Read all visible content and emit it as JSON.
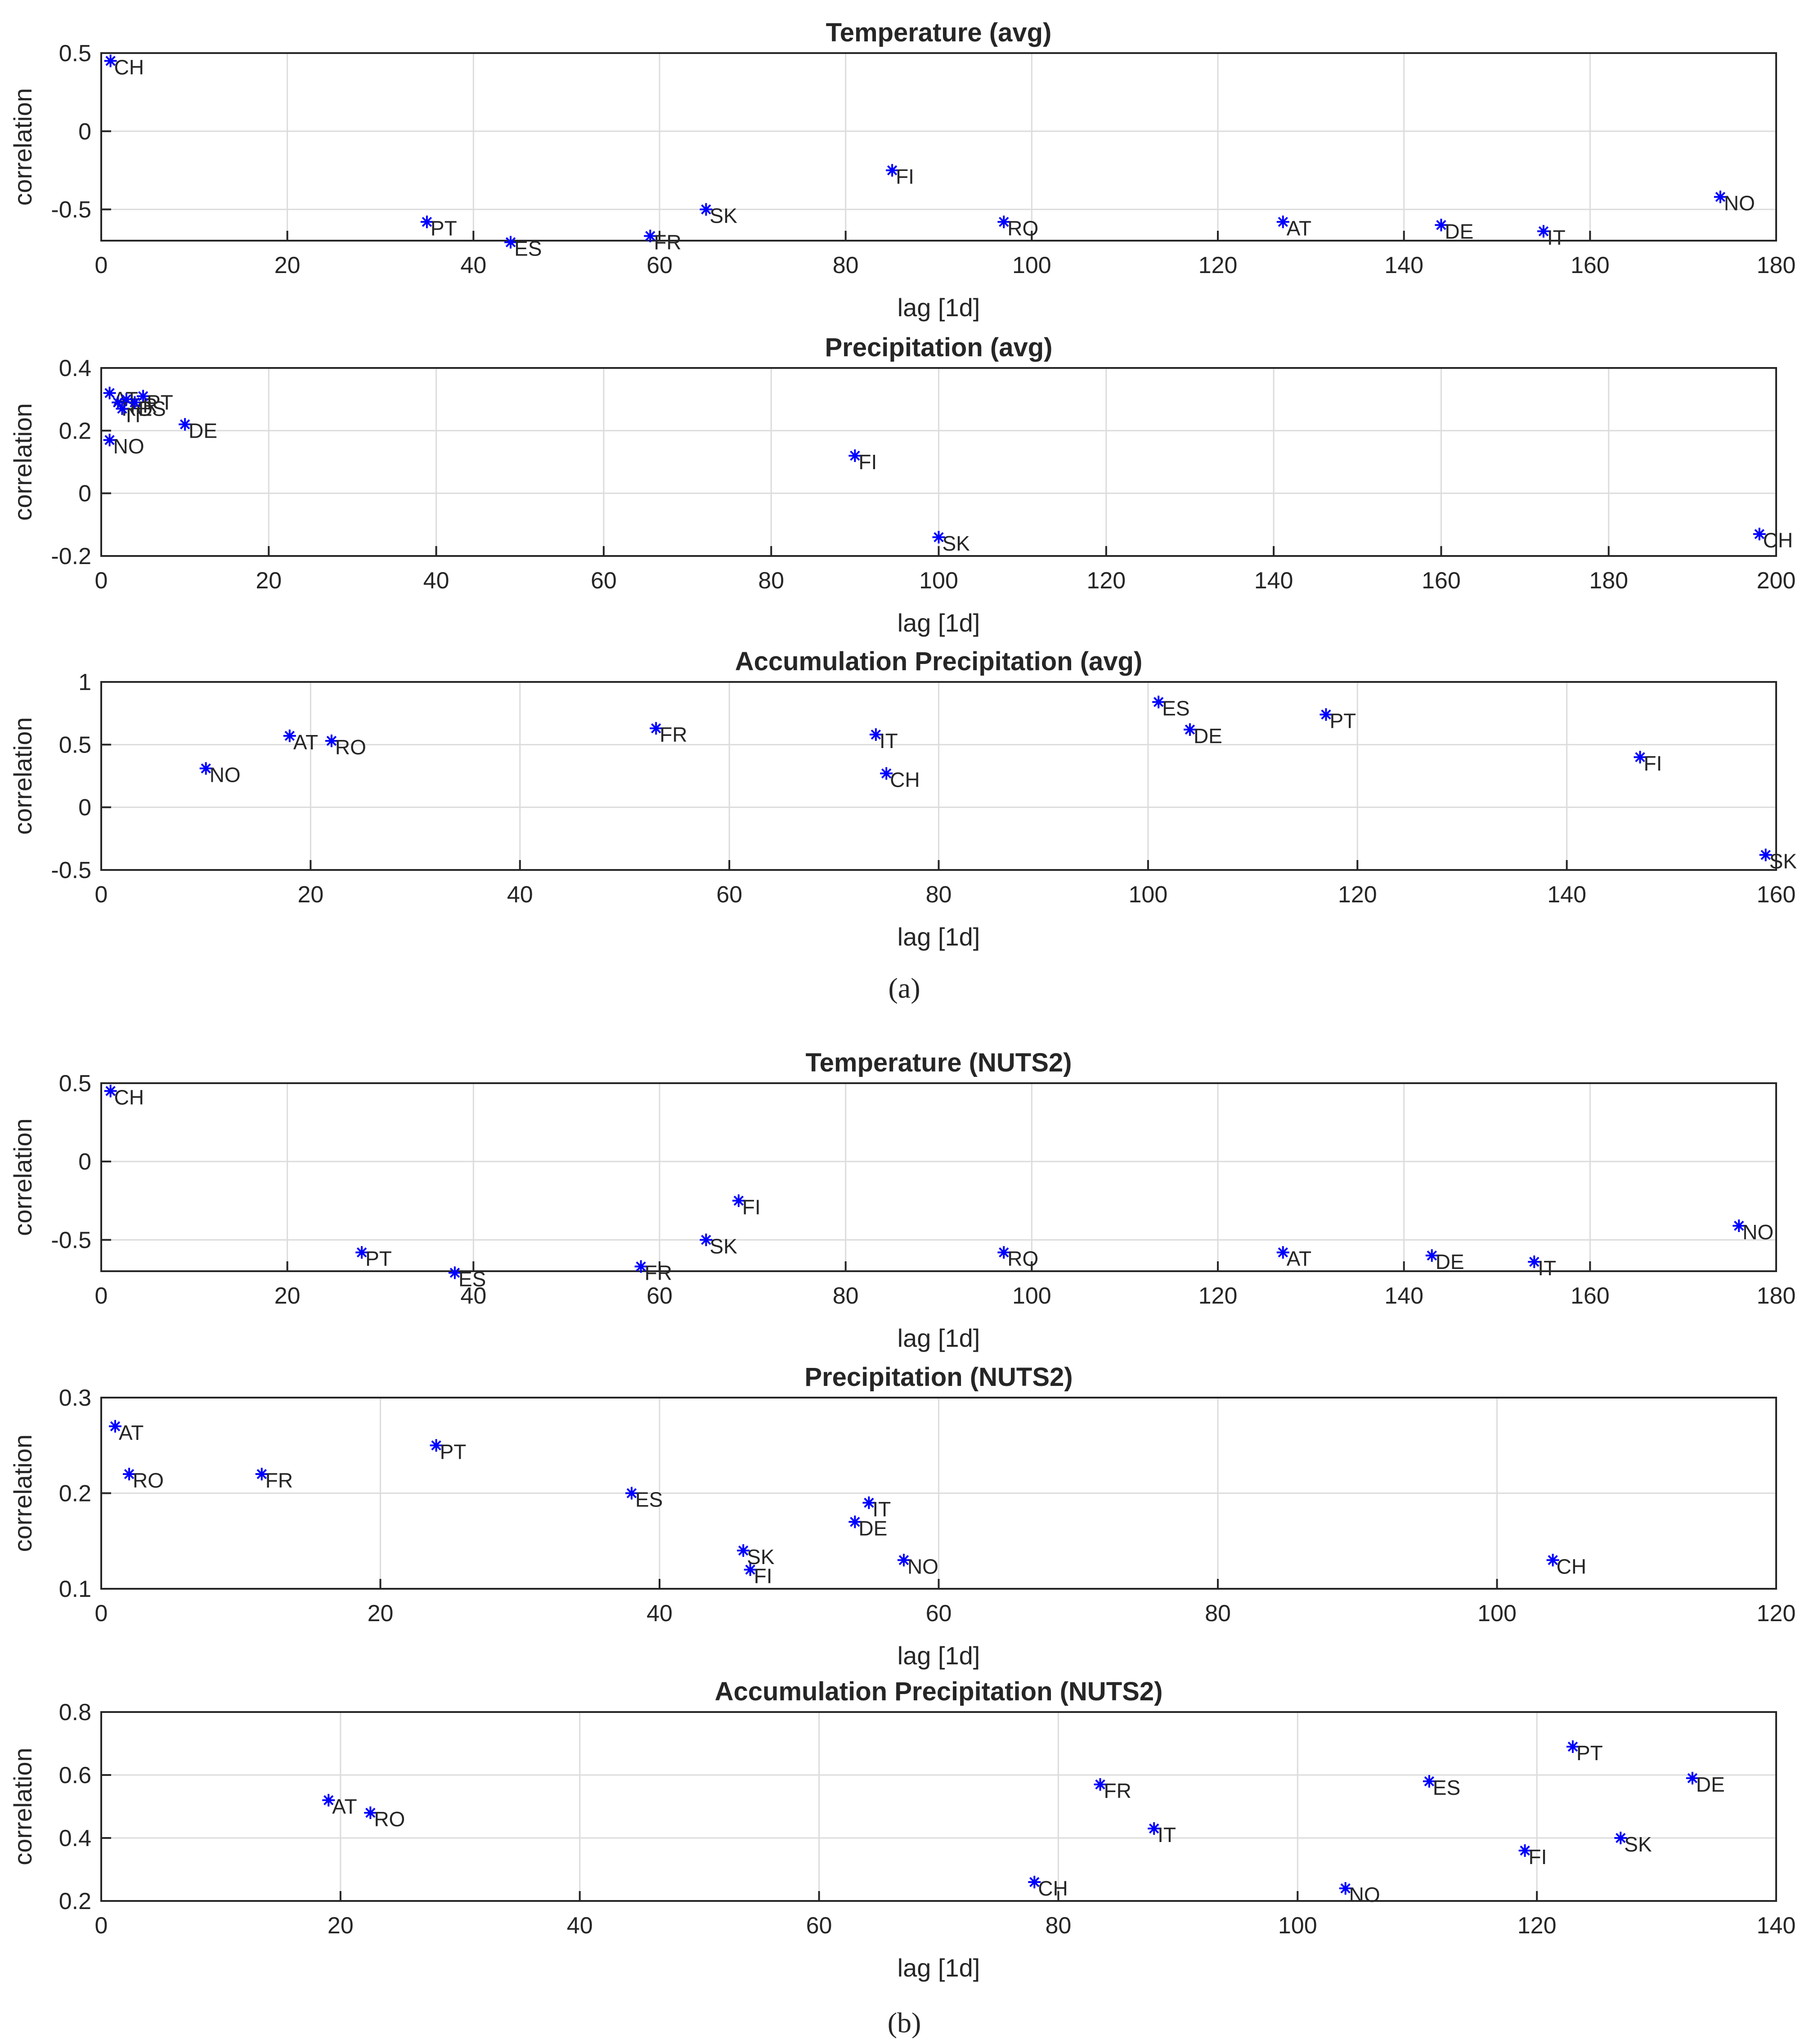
{
  "figure": {
    "caption_a": "(a)",
    "caption_b": "(b)"
  },
  "chart_data": [
    {
      "type": "scatter",
      "title": "Temperature (avg)",
      "xlabel": "lag [1d]",
      "ylabel": "correlation",
      "xlim": [
        0,
        180
      ],
      "ylim": [
        -0.7,
        0.5
      ],
      "xticks": [
        0,
        20,
        40,
        60,
        80,
        100,
        120,
        140,
        160,
        180
      ],
      "yticks": [
        -0.5,
        0,
        0.5
      ],
      "grid": true,
      "points": [
        {
          "label": "CH",
          "x": 1,
          "y": 0.45
        },
        {
          "label": "PT",
          "x": 35,
          "y": -0.58
        },
        {
          "label": "ES",
          "x": 44,
          "y": -0.71
        },
        {
          "label": "FR",
          "x": 59,
          "y": -0.67
        },
        {
          "label": "SK",
          "x": 65,
          "y": -0.5
        },
        {
          "label": "FI",
          "x": 85,
          "y": -0.25
        },
        {
          "label": "RO",
          "x": 97,
          "y": -0.58
        },
        {
          "label": "AT",
          "x": 127,
          "y": -0.58
        },
        {
          "label": "DE",
          "x": 144,
          "y": -0.6
        },
        {
          "label": "IT",
          "x": 155,
          "y": -0.64
        },
        {
          "label": "NO",
          "x": 174,
          "y": -0.42
        }
      ]
    },
    {
      "type": "scatter",
      "title": "Precipitation (avg)",
      "xlabel": "lag [1d]",
      "ylabel": "correlation",
      "xlim": [
        0,
        200
      ],
      "ylim": [
        -0.2,
        0.4
      ],
      "xticks": [
        0,
        20,
        40,
        60,
        80,
        100,
        120,
        140,
        160,
        180,
        200
      ],
      "yticks": [
        -0.2,
        0,
        0.2,
        0.4
      ],
      "grid": true,
      "points": [
        {
          "label": "AT",
          "x": 1,
          "y": 0.32
        },
        {
          "label": "RO",
          "x": 2,
          "y": 0.29
        },
        {
          "label": "FR",
          "x": 3,
          "y": 0.3
        },
        {
          "label": "IT",
          "x": 2.5,
          "y": 0.27
        },
        {
          "label": "PT",
          "x": 5,
          "y": 0.31
        },
        {
          "label": "ES",
          "x": 4,
          "y": 0.29
        },
        {
          "label": "DE",
          "x": 10,
          "y": 0.22
        },
        {
          "label": "NO",
          "x": 1,
          "y": 0.17
        },
        {
          "label": "FI",
          "x": 90,
          "y": 0.12
        },
        {
          "label": "SK",
          "x": 100,
          "y": -0.14
        },
        {
          "label": "CH",
          "x": 198,
          "y": -0.13
        }
      ]
    },
    {
      "type": "scatter",
      "title": "Accumulation Precipitation (avg)",
      "xlabel": "lag [1d]",
      "ylabel": "correlation",
      "xlim": [
        0,
        160
      ],
      "ylim": [
        -0.5,
        1
      ],
      "xticks": [
        0,
        20,
        40,
        60,
        80,
        100,
        120,
        140,
        160
      ],
      "yticks": [
        -0.5,
        0,
        0.5,
        1
      ],
      "grid": true,
      "points": [
        {
          "label": "NO",
          "x": 10,
          "y": 0.31
        },
        {
          "label": "AT",
          "x": 18,
          "y": 0.57
        },
        {
          "label": "RO",
          "x": 22,
          "y": 0.53
        },
        {
          "label": "FR",
          "x": 53,
          "y": 0.63
        },
        {
          "label": "IT",
          "x": 74,
          "y": 0.58
        },
        {
          "label": "CH",
          "x": 75,
          "y": 0.27
        },
        {
          "label": "ES",
          "x": 101,
          "y": 0.84
        },
        {
          "label": "DE",
          "x": 104,
          "y": 0.62
        },
        {
          "label": "PT",
          "x": 117,
          "y": 0.74
        },
        {
          "label": "FI",
          "x": 147,
          "y": 0.4
        },
        {
          "label": "SK",
          "x": 159,
          "y": -0.38
        }
      ]
    },
    {
      "type": "scatter",
      "title": "Temperature (NUTS2)",
      "xlabel": "lag [1d]",
      "ylabel": "correlation",
      "xlim": [
        0,
        180
      ],
      "ylim": [
        -0.7,
        0.5
      ],
      "xticks": [
        0,
        20,
        40,
        60,
        80,
        100,
        120,
        140,
        160,
        180
      ],
      "yticks": [
        -0.5,
        0,
        0.5
      ],
      "grid": true,
      "points": [
        {
          "label": "CH",
          "x": 1,
          "y": 0.45
        },
        {
          "label": "PT",
          "x": 28,
          "y": -0.58
        },
        {
          "label": "ES",
          "x": 38,
          "y": -0.71
        },
        {
          "label": "FR",
          "x": 58,
          "y": -0.67
        },
        {
          "label": "SK",
          "x": 65,
          "y": -0.5
        },
        {
          "label": "FI",
          "x": 68.5,
          "y": -0.25
        },
        {
          "label": "RO",
          "x": 97,
          "y": -0.58
        },
        {
          "label": "AT",
          "x": 127,
          "y": -0.58
        },
        {
          "label": "DE",
          "x": 143,
          "y": -0.6
        },
        {
          "label": "IT",
          "x": 154,
          "y": -0.64
        },
        {
          "label": "NO",
          "x": 176,
          "y": -0.41
        }
      ]
    },
    {
      "type": "scatter",
      "title": "Precipitation (NUTS2)",
      "xlabel": "lag [1d]",
      "ylabel": "correlation",
      "xlim": [
        0,
        120
      ],
      "ylim": [
        0.1,
        0.3
      ],
      "xticks": [
        0,
        20,
        40,
        60,
        80,
        100,
        120
      ],
      "yticks": [
        0.1,
        0.2,
        0.3
      ],
      "grid": true,
      "points": [
        {
          "label": "AT",
          "x": 1,
          "y": 0.27
        },
        {
          "label": "RO",
          "x": 2,
          "y": 0.22
        },
        {
          "label": "FR",
          "x": 11.5,
          "y": 0.22
        },
        {
          "label": "PT",
          "x": 24,
          "y": 0.25
        },
        {
          "label": "ES",
          "x": 38,
          "y": 0.2
        },
        {
          "label": "IT",
          "x": 55,
          "y": 0.19
        },
        {
          "label": "DE",
          "x": 54,
          "y": 0.17
        },
        {
          "label": "SK",
          "x": 46,
          "y": 0.14
        },
        {
          "label": "FI",
          "x": 46.5,
          "y": 0.12
        },
        {
          "label": "NO",
          "x": 57.5,
          "y": 0.13
        },
        {
          "label": "CH",
          "x": 104,
          "y": 0.13
        }
      ]
    },
    {
      "type": "scatter",
      "title": "Accumulation Precipitation (NUTS2)",
      "xlabel": "lag [1d]",
      "ylabel": "correlation",
      "xlim": [
        0,
        140
      ],
      "ylim": [
        0.2,
        0.8
      ],
      "xticks": [
        0,
        20,
        40,
        60,
        80,
        100,
        120,
        140
      ],
      "yticks": [
        0.2,
        0.4,
        0.6,
        0.8
      ],
      "grid": true,
      "points": [
        {
          "label": "AT",
          "x": 19,
          "y": 0.52
        },
        {
          "label": "RO",
          "x": 22.5,
          "y": 0.48
        },
        {
          "label": "CH",
          "x": 78,
          "y": 0.26
        },
        {
          "label": "FR",
          "x": 83.5,
          "y": 0.57
        },
        {
          "label": "IT",
          "x": 88,
          "y": 0.43
        },
        {
          "label": "NO",
          "x": 104,
          "y": 0.24
        },
        {
          "label": "ES",
          "x": 111,
          "y": 0.58
        },
        {
          "label": "FI",
          "x": 119,
          "y": 0.36
        },
        {
          "label": "PT",
          "x": 123,
          "y": 0.69
        },
        {
          "label": "SK",
          "x": 127,
          "y": 0.4
        },
        {
          "label": "DE",
          "x": 133,
          "y": 0.59
        }
      ]
    }
  ]
}
